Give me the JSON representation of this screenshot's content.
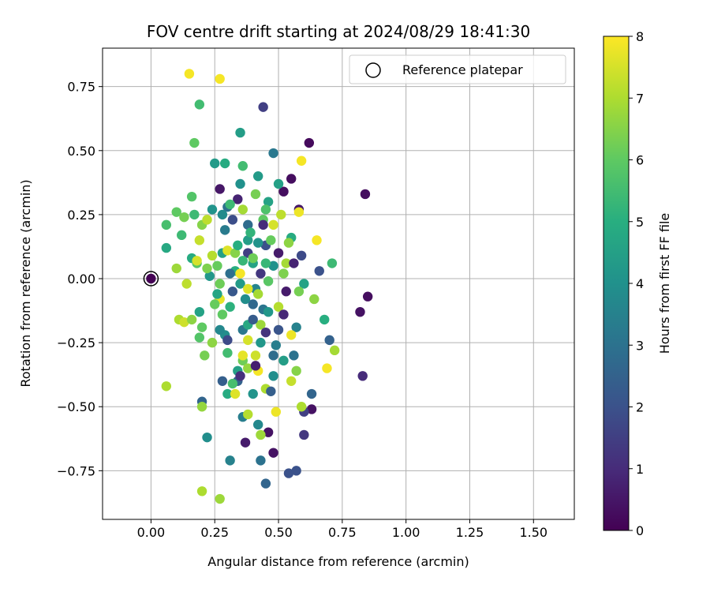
{
  "chart_data": {
    "type": "scatter",
    "title": "FOV centre drift starting at 2024/08/29 18:41:30",
    "xlabel": "Angular distance from reference (arcmin)",
    "ylabel": "Rotation from reference (arcmin)",
    "xlim": [
      -0.19,
      1.66
    ],
    "ylim": [
      -0.94,
      0.9
    ],
    "xticks": [
      "0.00",
      "0.25",
      "0.50",
      "0.75",
      "1.00",
      "1.25",
      "1.50"
    ],
    "yticks": [
      "−0.75",
      "−0.50",
      "−0.25",
      "0.00",
      "0.25",
      "0.50",
      "0.75"
    ],
    "grid": true,
    "legend": {
      "position": "top-right",
      "entries": [
        "Reference platepar"
      ]
    },
    "colorbar": {
      "label": "Hours from first FF file",
      "range": [
        0,
        8
      ],
      "ticks": [
        "0",
        "1",
        "2",
        "3",
        "4",
        "5",
        "6",
        "7",
        "8"
      ],
      "colormap": "viridis"
    },
    "reference_point": {
      "x": 0.0,
      "y": 0.0
    },
    "series": [
      {
        "points": [
          {
            "x": 0.0,
            "y": 0.0,
            "h": 0.0
          },
          {
            "x": 0.62,
            "y": 0.53,
            "h": 0.2
          },
          {
            "x": 0.84,
            "y": 0.33,
            "h": 0.3
          },
          {
            "x": 0.85,
            "y": -0.07,
            "h": 0.3
          },
          {
            "x": 0.82,
            "y": -0.13,
            "h": 0.4
          },
          {
            "x": 0.83,
            "y": -0.38,
            "h": 1.0
          },
          {
            "x": 0.55,
            "y": 0.39,
            "h": 0.3
          },
          {
            "x": 0.52,
            "y": 0.34,
            "h": 0.3
          },
          {
            "x": 0.58,
            "y": 0.27,
            "h": 0.5
          },
          {
            "x": 0.48,
            "y": -0.68,
            "h": 0.4
          },
          {
            "x": 0.46,
            "y": -0.6,
            "h": 0.4
          },
          {
            "x": 0.37,
            "y": -0.64,
            "h": 0.6
          },
          {
            "x": 0.63,
            "y": -0.51,
            "h": 0.4
          },
          {
            "x": 0.27,
            "y": 0.35,
            "h": 0.5
          },
          {
            "x": 0.34,
            "y": 0.31,
            "h": 0.8
          },
          {
            "x": 0.53,
            "y": -0.05,
            "h": 0.6
          },
          {
            "x": 0.5,
            "y": 0.1,
            "h": 0.6
          },
          {
            "x": 0.44,
            "y": 0.67,
            "h": 1.5
          },
          {
            "x": 0.54,
            "y": -0.76,
            "h": 2.0
          },
          {
            "x": 0.57,
            "y": -0.75,
            "h": 2.0
          },
          {
            "x": 0.45,
            "y": -0.8,
            "h": 2.6
          },
          {
            "x": 0.43,
            "y": -0.71,
            "h": 3.0
          },
          {
            "x": 0.31,
            "y": -0.71,
            "h": 3.5
          },
          {
            "x": 0.36,
            "y": -0.54,
            "h": 3.4
          },
          {
            "x": 0.42,
            "y": -0.57,
            "h": 3.7
          },
          {
            "x": 0.2,
            "y": -0.48,
            "h": 2.6
          },
          {
            "x": 0.22,
            "y": -0.62,
            "h": 3.9
          },
          {
            "x": 0.48,
            "y": 0.49,
            "h": 3.2
          },
          {
            "x": 0.6,
            "y": -0.61,
            "h": 1.3
          },
          {
            "x": 0.6,
            "y": -0.52,
            "h": 1.5
          },
          {
            "x": 0.63,
            "y": -0.45,
            "h": 2.6
          },
          {
            "x": 0.66,
            "y": 0.03,
            "h": 2.0
          },
          {
            "x": 0.7,
            "y": -0.24,
            "h": 2.5
          },
          {
            "x": 0.59,
            "y": 0.09,
            "h": 1.8
          },
          {
            "x": 0.28,
            "y": -0.4,
            "h": 2.4
          },
          {
            "x": 0.34,
            "y": -0.4,
            "h": 2.5
          },
          {
            "x": 0.45,
            "y": 0.13,
            "h": 2.0
          },
          {
            "x": 0.38,
            "y": 0.1,
            "h": 1.5
          },
          {
            "x": 0.32,
            "y": -0.05,
            "h": 2.2
          },
          {
            "x": 0.4,
            "y": -0.1,
            "h": 2.7
          },
          {
            "x": 0.48,
            "y": -0.3,
            "h": 2.8
          },
          {
            "x": 0.44,
            "y": -0.12,
            "h": 3.1
          },
          {
            "x": 0.36,
            "y": -0.2,
            "h": 3.2
          },
          {
            "x": 0.5,
            "y": -0.2,
            "h": 2.1
          },
          {
            "x": 0.3,
            "y": 0.28,
            "h": 3.0
          },
          {
            "x": 0.38,
            "y": 0.21,
            "h": 2.8
          },
          {
            "x": 0.42,
            "y": 0.4,
            "h": 4.3
          },
          {
            "x": 0.35,
            "y": 0.57,
            "h": 4.4
          },
          {
            "x": 0.25,
            "y": 0.45,
            "h": 4.3
          },
          {
            "x": 0.29,
            "y": 0.45,
            "h": 4.9
          },
          {
            "x": 0.35,
            "y": 0.37,
            "h": 4.0
          },
          {
            "x": 0.5,
            "y": 0.37,
            "h": 4.5
          },
          {
            "x": 0.46,
            "y": 0.3,
            "h": 4.6
          },
          {
            "x": 0.28,
            "y": 0.25,
            "h": 3.8
          },
          {
            "x": 0.38,
            "y": 0.15,
            "h": 4.4
          },
          {
            "x": 0.42,
            "y": 0.14,
            "h": 4.1
          },
          {
            "x": 0.48,
            "y": 0.05,
            "h": 4.0
          },
          {
            "x": 0.4,
            "y": 0.06,
            "h": 4.6
          },
          {
            "x": 0.33,
            "y": 0.03,
            "h": 5.0
          },
          {
            "x": 0.35,
            "y": -0.02,
            "h": 4.3
          },
          {
            "x": 0.41,
            "y": -0.04,
            "h": 3.6
          },
          {
            "x": 0.46,
            "y": -0.13,
            "h": 4.2
          },
          {
            "x": 0.38,
            "y": -0.18,
            "h": 4.8
          },
          {
            "x": 0.29,
            "y": -0.22,
            "h": 3.9
          },
          {
            "x": 0.43,
            "y": -0.25,
            "h": 4.2
          },
          {
            "x": 0.52,
            "y": -0.32,
            "h": 4.4
          },
          {
            "x": 0.34,
            "y": -0.36,
            "h": 4.5
          },
          {
            "x": 0.4,
            "y": -0.45,
            "h": 4.1
          },
          {
            "x": 0.3,
            "y": -0.45,
            "h": 4.9
          },
          {
            "x": 0.48,
            "y": -0.38,
            "h": 3.9
          },
          {
            "x": 0.57,
            "y": -0.19,
            "h": 3.5
          },
          {
            "x": 0.6,
            "y": -0.02,
            "h": 4.6
          },
          {
            "x": 0.16,
            "y": 0.08,
            "h": 4.9
          },
          {
            "x": 0.06,
            "y": 0.12,
            "h": 4.8
          },
          {
            "x": 0.24,
            "y": 0.27,
            "h": 4.1
          },
          {
            "x": 0.27,
            "y": -0.2,
            "h": 3.7
          },
          {
            "x": 0.19,
            "y": -0.13,
            "h": 4.6
          },
          {
            "x": 0.23,
            "y": 0.01,
            "h": 4.2
          },
          {
            "x": 0.28,
            "y": 0.1,
            "h": 4.5
          },
          {
            "x": 0.71,
            "y": 0.06,
            "h": 5.4
          },
          {
            "x": 0.68,
            "y": -0.16,
            "h": 5.0
          },
          {
            "x": 0.55,
            "y": 0.16,
            "h": 4.9
          },
          {
            "x": 0.19,
            "y": 0.68,
            "h": 5.5
          },
          {
            "x": 0.17,
            "y": 0.53,
            "h": 6.0
          },
          {
            "x": 0.31,
            "y": 0.29,
            "h": 5.4
          },
          {
            "x": 0.16,
            "y": 0.32,
            "h": 5.8
          },
          {
            "x": 0.1,
            "y": 0.26,
            "h": 6.0
          },
          {
            "x": 0.12,
            "y": 0.17,
            "h": 5.4
          },
          {
            "x": 0.06,
            "y": 0.21,
            "h": 5.6
          },
          {
            "x": 0.13,
            "y": 0.24,
            "h": 6.3
          },
          {
            "x": 0.17,
            "y": 0.25,
            "h": 5.4
          },
          {
            "x": 0.18,
            "y": 0.06,
            "h": 5.9
          },
          {
            "x": 0.22,
            "y": 0.04,
            "h": 6.4
          },
          {
            "x": 0.26,
            "y": 0.05,
            "h": 6.1
          },
          {
            "x": 0.2,
            "y": -0.19,
            "h": 6.0
          },
          {
            "x": 0.21,
            "y": -0.3,
            "h": 6.3
          },
          {
            "x": 0.19,
            "y": -0.23,
            "h": 5.8
          },
          {
            "x": 0.24,
            "y": -0.25,
            "h": 6.6
          },
          {
            "x": 0.28,
            "y": -0.14,
            "h": 6.0
          },
          {
            "x": 0.3,
            "y": -0.29,
            "h": 5.5
          },
          {
            "x": 0.32,
            "y": -0.41,
            "h": 5.6
          },
          {
            "x": 0.36,
            "y": -0.32,
            "h": 6.2
          },
          {
            "x": 0.38,
            "y": -0.35,
            "h": 6.7
          },
          {
            "x": 0.43,
            "y": -0.61,
            "h": 6.8
          },
          {
            "x": 0.38,
            "y": -0.53,
            "h": 7.1
          },
          {
            "x": 0.2,
            "y": -0.5,
            "h": 6.7
          },
          {
            "x": 0.2,
            "y": -0.83,
            "h": 7.0
          },
          {
            "x": 0.27,
            "y": -0.86,
            "h": 6.8
          },
          {
            "x": 0.06,
            "y": -0.42,
            "h": 7.0
          },
          {
            "x": 0.11,
            "y": -0.16,
            "h": 7.0
          },
          {
            "x": 0.13,
            "y": -0.17,
            "h": 7.4
          },
          {
            "x": 0.16,
            "y": -0.16,
            "h": 6.6
          },
          {
            "x": 0.2,
            "y": 0.21,
            "h": 6.5
          },
          {
            "x": 0.22,
            "y": 0.23,
            "h": 7.2
          },
          {
            "x": 0.19,
            "y": 0.15,
            "h": 7.3
          },
          {
            "x": 0.18,
            "y": 0.07,
            "h": 7.5
          },
          {
            "x": 0.27,
            "y": -0.08,
            "h": 7.7
          },
          {
            "x": 0.3,
            "y": 0.11,
            "h": 7.6
          },
          {
            "x": 0.35,
            "y": 0.02,
            "h": 7.9
          },
          {
            "x": 0.33,
            "y": 0.1,
            "h": 6.5
          },
          {
            "x": 0.4,
            "y": 0.08,
            "h": 6.2
          },
          {
            "x": 0.44,
            "y": 0.23,
            "h": 6.0
          },
          {
            "x": 0.45,
            "y": 0.27,
            "h": 5.7
          },
          {
            "x": 0.48,
            "y": 0.21,
            "h": 7.5
          },
          {
            "x": 0.51,
            "y": 0.25,
            "h": 7.2
          },
          {
            "x": 0.54,
            "y": 0.14,
            "h": 6.6
          },
          {
            "x": 0.58,
            "y": 0.26,
            "h": 7.8
          },
          {
            "x": 0.59,
            "y": 0.46,
            "h": 7.9
          },
          {
            "x": 0.65,
            "y": 0.15,
            "h": 7.9
          },
          {
            "x": 0.58,
            "y": -0.05,
            "h": 6.3
          },
          {
            "x": 0.64,
            "y": -0.08,
            "h": 6.6
          },
          {
            "x": 0.59,
            "y": -0.5,
            "h": 7.0
          },
          {
            "x": 0.69,
            "y": -0.35,
            "h": 7.9
          },
          {
            "x": 0.72,
            "y": -0.28,
            "h": 6.9
          },
          {
            "x": 0.57,
            "y": -0.36,
            "h": 6.5
          },
          {
            "x": 0.55,
            "y": -0.4,
            "h": 7.3
          },
          {
            "x": 0.49,
            "y": -0.52,
            "h": 7.8
          },
          {
            "x": 0.45,
            "y": -0.43,
            "h": 7.0
          },
          {
            "x": 0.38,
            "y": -0.24,
            "h": 7.5
          },
          {
            "x": 0.33,
            "y": -0.45,
            "h": 7.6
          },
          {
            "x": 0.41,
            "y": -0.3,
            "h": 7.4
          },
          {
            "x": 0.36,
            "y": -0.3,
            "h": 7.7
          },
          {
            "x": 0.43,
            "y": -0.18,
            "h": 6.8
          },
          {
            "x": 0.5,
            "y": -0.11,
            "h": 7.1
          },
          {
            "x": 0.52,
            "y": 0.02,
            "h": 6.4
          },
          {
            "x": 0.42,
            "y": -0.06,
            "h": 6.9
          },
          {
            "x": 0.38,
            "y": -0.04,
            "h": 7.6
          },
          {
            "x": 0.15,
            "y": 0.8,
            "h": 7.9
          },
          {
            "x": 0.27,
            "y": 0.78,
            "h": 7.9
          },
          {
            "x": 0.36,
            "y": 0.44,
            "h": 5.5
          },
          {
            "x": 0.41,
            "y": 0.33,
            "h": 6.3
          },
          {
            "x": 0.55,
            "y": -0.22,
            "h": 7.8
          },
          {
            "x": 0.14,
            "y": -0.02,
            "h": 7.2
          },
          {
            "x": 0.1,
            "y": 0.04,
            "h": 6.8
          },
          {
            "x": 0.25,
            "y": -0.1,
            "h": 6.1
          },
          {
            "x": 0.42,
            "y": -0.36,
            "h": 7.9
          },
          {
            "x": 0.46,
            "y": -0.01,
            "h": 5.9
          },
          {
            "x": 0.39,
            "y": 0.18,
            "h": 5.2
          },
          {
            "x": 0.45,
            "y": 0.06,
            "h": 5.3
          },
          {
            "x": 0.31,
            "y": -0.11,
            "h": 5.1
          },
          {
            "x": 0.34,
            "y": 0.13,
            "h": 5.0
          },
          {
            "x": 0.36,
            "y": 0.27,
            "h": 6.9
          },
          {
            "x": 0.47,
            "y": 0.15,
            "h": 6.1
          },
          {
            "x": 0.53,
            "y": 0.06,
            "h": 6.9
          },
          {
            "x": 0.24,
            "y": 0.09,
            "h": 7.1
          },
          {
            "x": 0.26,
            "y": -0.06,
            "h": 4.7
          },
          {
            "x": 0.29,
            "y": 0.19,
            "h": 3.3
          },
          {
            "x": 0.31,
            "y": 0.02,
            "h": 2.9
          },
          {
            "x": 0.37,
            "y": -0.08,
            "h": 3.9
          },
          {
            "x": 0.49,
            "y": -0.26,
            "h": 3.4
          },
          {
            "x": 0.4,
            "y": -0.16,
            "h": 2.3
          },
          {
            "x": 0.45,
            "y": -0.21,
            "h": 1.2
          },
          {
            "x": 0.52,
            "y": -0.14,
            "h": 0.9
          },
          {
            "x": 0.41,
            "y": -0.34,
            "h": 0.7
          },
          {
            "x": 0.35,
            "y": -0.38,
            "h": 1.1
          },
          {
            "x": 0.3,
            "y": -0.24,
            "h": 1.8
          },
          {
            "x": 0.47,
            "y": -0.44,
            "h": 2.4
          },
          {
            "x": 0.56,
            "y": -0.3,
            "h": 3.0
          },
          {
            "x": 0.44,
            "y": 0.21,
            "h": 1.0
          },
          {
            "x": 0.32,
            "y": 0.23,
            "h": 1.9
          },
          {
            "x": 0.56,
            "y": 0.06,
            "h": 0.8
          },
          {
            "x": 0.43,
            "y": 0.02,
            "h": 1.3
          },
          {
            "x": 0.36,
            "y": 0.07,
            "h": 5.3
          },
          {
            "x": 0.27,
            "y": -0.02,
            "h": 6.2
          }
        ]
      }
    ]
  }
}
